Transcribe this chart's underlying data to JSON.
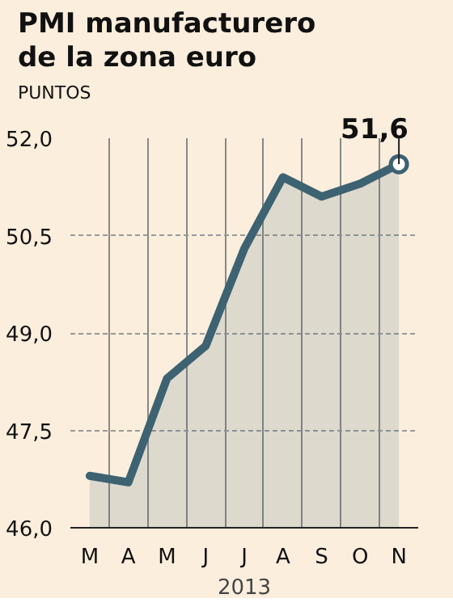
{
  "chart_data": {
    "type": "area",
    "title": "PMI manufacturero\nde la zona euro",
    "xlabel": "2013",
    "categories": [
      "M",
      "A",
      "M",
      "J",
      "J",
      "A",
      "S",
      "O",
      "N"
    ],
    "series": [
      {
        "color": "#3d6272",
        "values": [
          46.8,
          46.7,
          48.3,
          48.8,
          50.3,
          51.4,
          51.1,
          51.3,
          51.6
        ]
      }
    ],
    "ylim": [
      46.0,
      52.0
    ],
    "yticks": [
      {
        "value": 46.0,
        "label": "46,0"
      },
      {
        "value": 47.5,
        "label": "47,5"
      },
      {
        "value": 49.0,
        "label": "49,0"
      },
      {
        "value": 50.5,
        "label": "50,5"
      },
      {
        "value": 52.0,
        "label": "52,0"
      }
    ],
    "grid": true,
    "annotations": [
      "PUNTOS",
      {
        "text": "51,6",
        "x": "N",
        "y": 51.6
      }
    ]
  }
}
